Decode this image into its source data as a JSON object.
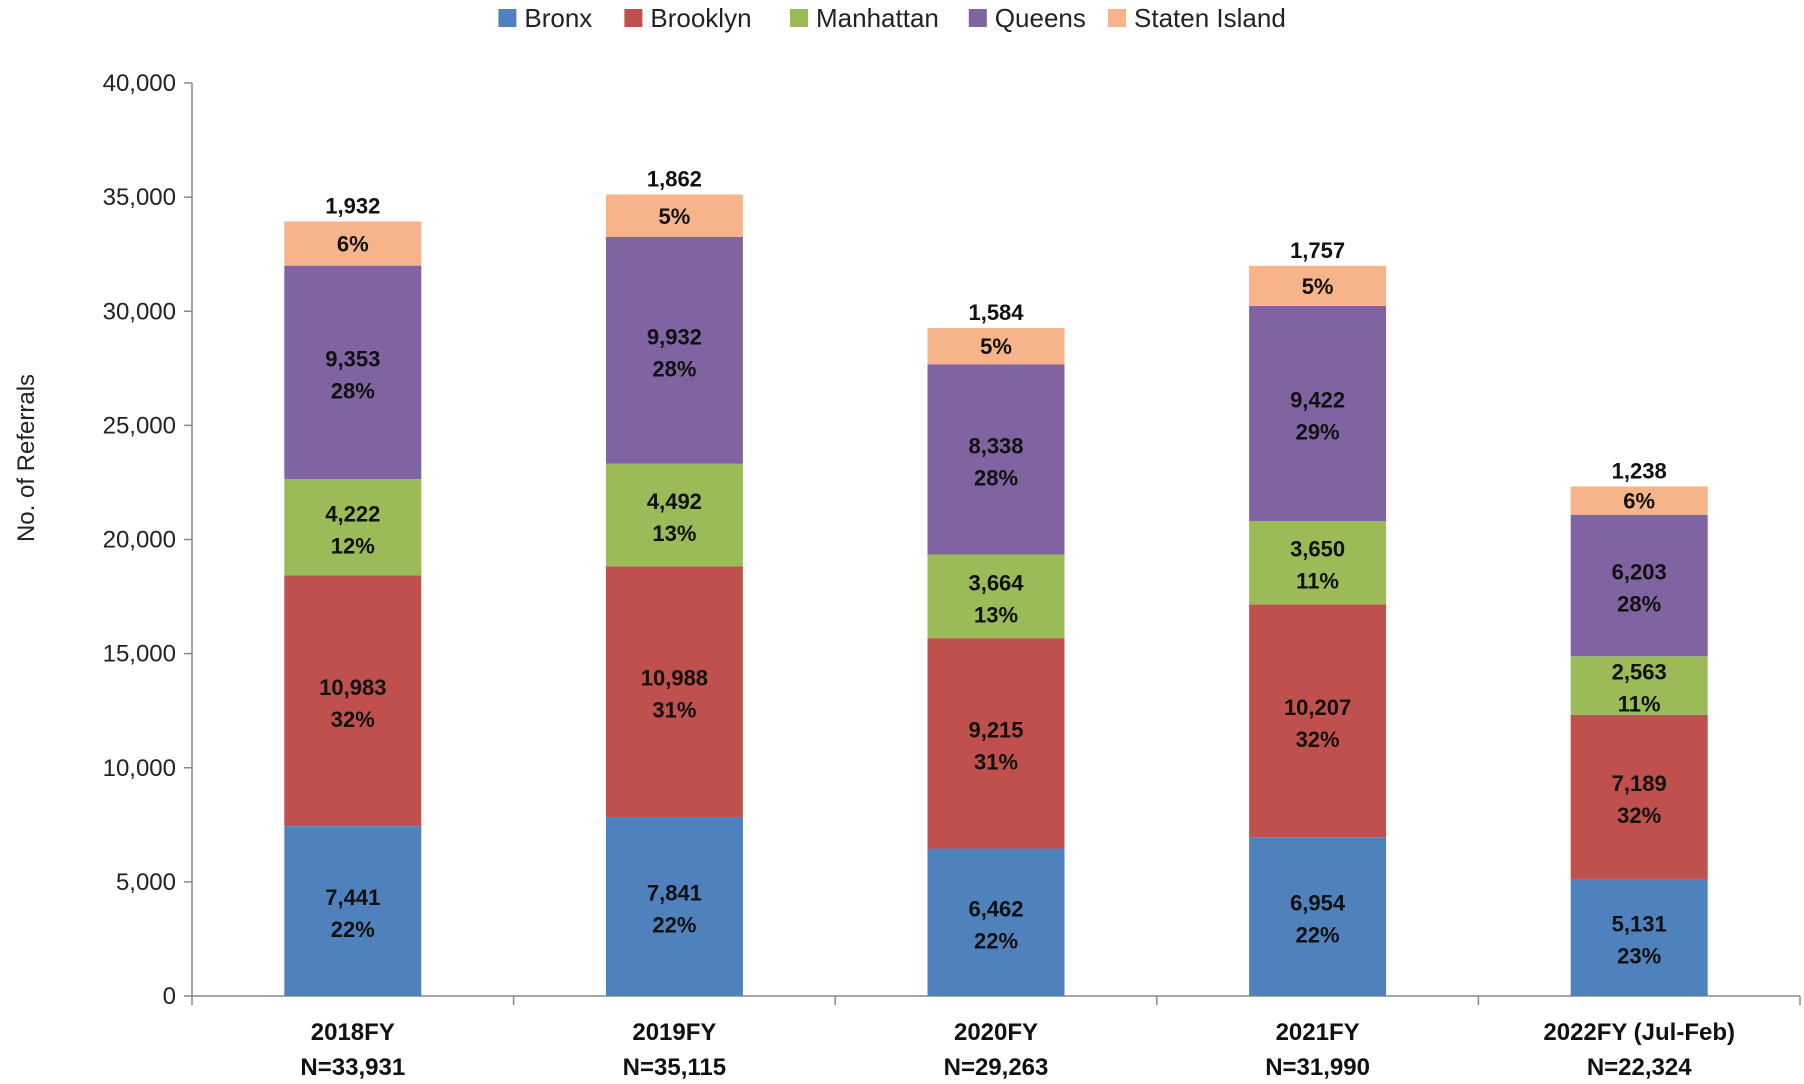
{
  "chart_data": {
    "type": "bar",
    "stacked": true,
    "title": "",
    "xlabel": "",
    "ylabel": "No. of Referrals",
    "ylim": [
      0,
      40000
    ],
    "yticks": [
      "0",
      "5,000",
      "10,000",
      "15,000",
      "20,000",
      "25,000",
      "30,000",
      "35,000",
      "40,000"
    ],
    "grid": false,
    "legend_position": "top",
    "categories": [
      "2018FY",
      "2019FY",
      "2020FY",
      "2021FY",
      "2022FY (Jul-Feb)"
    ],
    "category_totals": [
      "N=33,931",
      "N=35,115",
      "N=29,263",
      "N=31,990",
      "N=22,324"
    ],
    "series": [
      {
        "name": "Bronx",
        "color": "#4F81BD",
        "values": [
          7441,
          7841,
          6462,
          6954,
          5131
        ],
        "labels": [
          "7,441",
          "7,841",
          "6,462",
          "6,954",
          "5,131"
        ],
        "percents": [
          "22%",
          "22%",
          "22%",
          "22%",
          "23%"
        ]
      },
      {
        "name": "Brooklyn",
        "color": "#C0504D",
        "values": [
          10983,
          10988,
          9215,
          10207,
          7189
        ],
        "labels": [
          "10,983",
          "10,988",
          "9,215",
          "10,207",
          "7,189"
        ],
        "percents": [
          "32%",
          "31%",
          "31%",
          "32%",
          "32%"
        ]
      },
      {
        "name": "Manhattan",
        "color": "#9BBB59",
        "values": [
          4222,
          4492,
          3664,
          3650,
          2563
        ],
        "labels": [
          "4,222",
          "4,492",
          "3,664",
          "3,650",
          "2,563"
        ],
        "percents": [
          "12%",
          "13%",
          "13%",
          "11%",
          "11%"
        ]
      },
      {
        "name": "Queens",
        "color": "#8064A2",
        "values": [
          9353,
          9932,
          8338,
          9422,
          6203
        ],
        "labels": [
          "9,353",
          "9,932",
          "8,338",
          "9,422",
          "6,203"
        ],
        "percents": [
          "28%",
          "28%",
          "28%",
          "29%",
          "28%"
        ]
      },
      {
        "name": "Staten Island",
        "color": "#F7B48A",
        "values": [
          1932,
          1862,
          1584,
          1757,
          1238
        ],
        "labels": [
          "1,932",
          "1,862",
          "1,584",
          "1,757",
          "1,238"
        ],
        "percents": [
          "6%",
          "5%",
          "5%",
          "5%",
          "6%"
        ]
      }
    ]
  }
}
